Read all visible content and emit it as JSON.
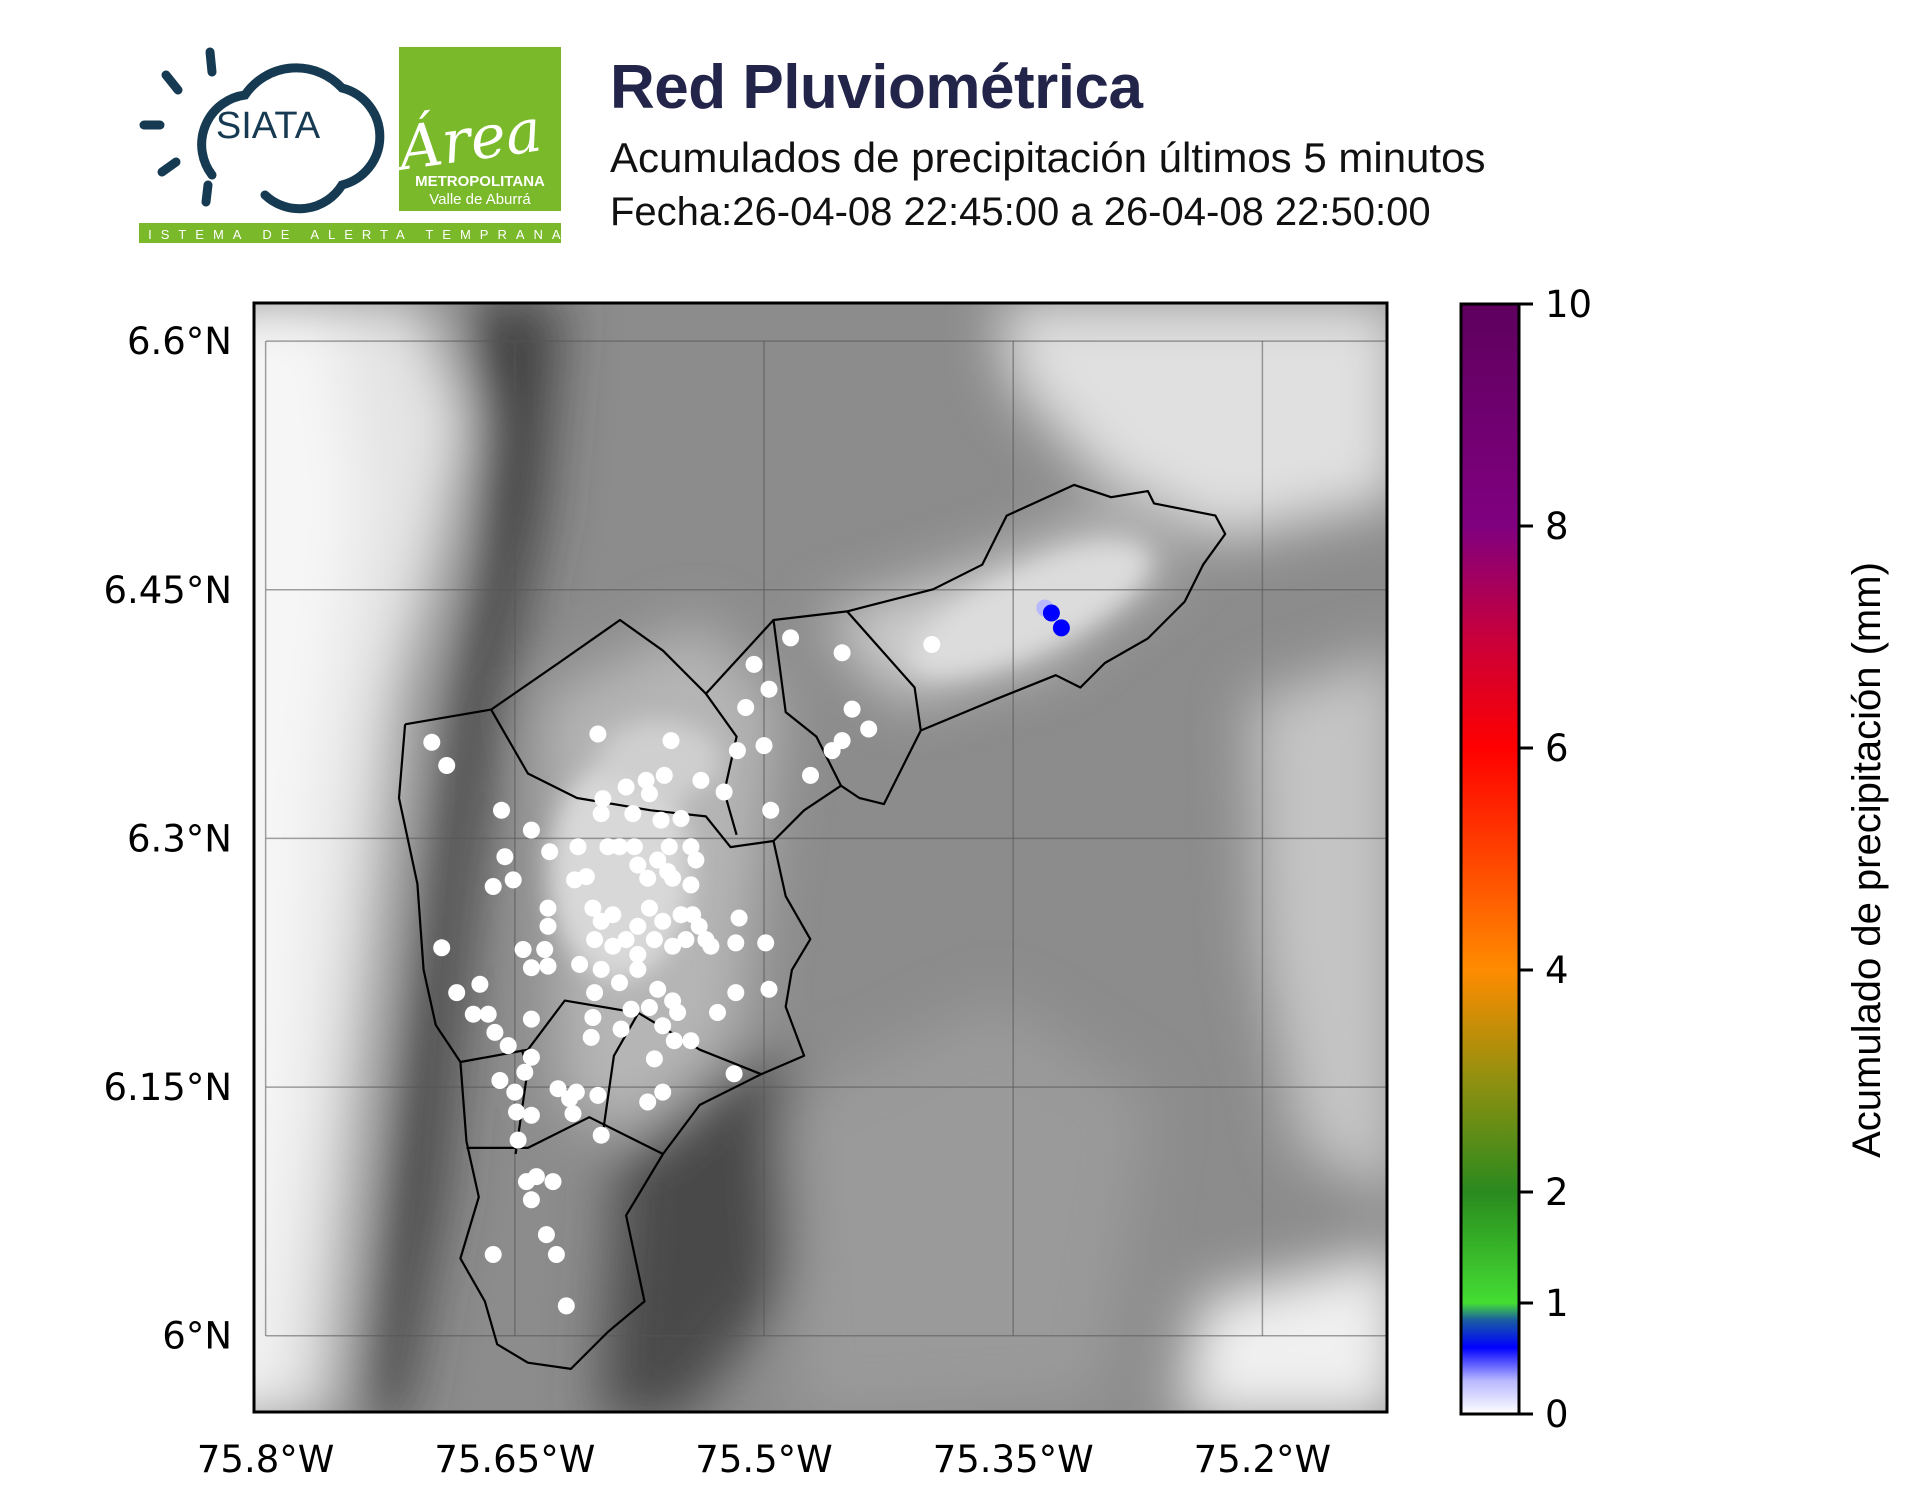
{
  "header": {
    "title": "Red Pluviométrica",
    "subtitle": "Acumulados de precipitación últimos 5 minutos",
    "date_range": "Fecha:26-04-08 22:45:00 a 26-04-08 22:50:00"
  },
  "logos": {
    "siata": "SIATA",
    "siata_tagline": "SISTEMA DE ALERTA TEMPRANA",
    "area_script": "Área",
    "area_line1": "METROPOLITANA",
    "area_line2": "Valle de Aburrá",
    "area_color": "#7ab929",
    "siata_color": "#163a52"
  },
  "chart_data": {
    "type": "scatter",
    "map_type": "station map over grayscale elevation relief",
    "lon_ticks": [
      {
        "value": -75.8,
        "label": "75.8°W"
      },
      {
        "value": -75.65,
        "label": "75.65°W"
      },
      {
        "value": -75.5,
        "label": "75.5°W"
      },
      {
        "value": -75.35,
        "label": "75.35°W"
      },
      {
        "value": -75.2,
        "label": "75.2°W"
      }
    ],
    "lat_ticks": [
      {
        "value": 6.6,
        "label": "6.6°N"
      },
      {
        "value": 6.45,
        "label": "6.45°N"
      },
      {
        "value": 6.3,
        "label": "6.3°N"
      },
      {
        "value": 6.15,
        "label": "6.15°N"
      },
      {
        "value": 6.0,
        "label": "6°N"
      }
    ],
    "lon_range": [
      -75.807,
      -75.125
    ],
    "lat_range": [
      5.954,
      6.623
    ],
    "grid": true,
    "colorbar": {
      "label": "Acumulado de precipitación (mm)",
      "range": [
        0,
        10
      ],
      "ticks": [
        {
          "value": 0,
          "label": "0"
        },
        {
          "value": 1,
          "label": "1"
        },
        {
          "value": 2,
          "label": "2"
        },
        {
          "value": 4,
          "label": "4"
        },
        {
          "value": 6,
          "label": "6"
        },
        {
          "value": 8,
          "label": "8"
        },
        {
          "value": 10,
          "label": "10"
        }
      ],
      "stops": [
        [
          0,
          "#ffffff"
        ],
        [
          0.3,
          "#b8b8ff"
        ],
        [
          0.6,
          "#0000ff"
        ],
        [
          0.85,
          "#1a5fa0"
        ],
        [
          1,
          "#44dd33"
        ],
        [
          2,
          "#2a8a1e"
        ],
        [
          3,
          "#909010"
        ],
        [
          4,
          "#ff8c00"
        ],
        [
          5,
          "#ff4500"
        ],
        [
          6,
          "#ff0000"
        ],
        [
          7,
          "#c8003c"
        ],
        [
          8,
          "#800080"
        ],
        [
          10,
          "#5e005e"
        ]
      ]
    },
    "stations": [
      [
        -75.7,
        6.358,
        0
      ],
      [
        -75.691,
        6.344,
        0
      ],
      [
        -75.6,
        6.363,
        0
      ],
      [
        -75.556,
        6.359,
        0
      ],
      [
        -75.658,
        6.317,
        0
      ],
      [
        -75.64,
        6.305,
        0
      ],
      [
        -75.656,
        6.289,
        0
      ],
      [
        -75.663,
        6.271,
        0
      ],
      [
        -75.651,
        6.275,
        0
      ],
      [
        -75.629,
        6.292,
        0
      ],
      [
        -75.612,
        6.295,
        0
      ],
      [
        -75.694,
        6.234,
        0
      ],
      [
        -75.685,
        6.207,
        0
      ],
      [
        -75.671,
        6.212,
        0
      ],
      [
        -75.675,
        6.194,
        0
      ],
      [
        -75.666,
        6.194,
        0
      ],
      [
        -75.662,
        6.183,
        0
      ],
      [
        -75.654,
        6.175,
        0
      ],
      [
        -75.64,
        6.191,
        0
      ],
      [
        -75.645,
        6.233,
        0
      ],
      [
        -75.632,
        6.233,
        0
      ],
      [
        -75.64,
        6.222,
        0
      ],
      [
        -75.63,
        6.223,
        0
      ],
      [
        -75.63,
        6.258,
        0
      ],
      [
        -75.63,
        6.247,
        0
      ],
      [
        -75.614,
        6.275,
        0
      ],
      [
        -75.607,
        6.277,
        0
      ],
      [
        -75.603,
        6.258,
        0
      ],
      [
        -75.594,
        6.295,
        0
      ],
      [
        -75.587,
        6.295,
        0
      ],
      [
        -75.578,
        6.295,
        0
      ],
      [
        -75.597,
        6.324,
        0
      ],
      [
        -75.598,
        6.315,
        0
      ],
      [
        -75.583,
        6.331,
        0
      ],
      [
        -75.571,
        6.335,
        0
      ],
      [
        -75.56,
        6.338,
        0
      ],
      [
        -75.569,
        6.327,
        0
      ],
      [
        -75.579,
        6.315,
        0
      ],
      [
        -75.562,
        6.311,
        0
      ],
      [
        -75.55,
        6.312,
        0
      ],
      [
        -75.557,
        6.295,
        0
      ],
      [
        -75.558,
        6.28,
        0
      ],
      [
        -75.544,
        6.295,
        0
      ],
      [
        -75.541,
        6.287,
        0
      ],
      [
        -75.538,
        6.335,
        0
      ],
      [
        -75.524,
        6.328,
        0
      ],
      [
        -75.516,
        6.353,
        0
      ],
      [
        -75.5,
        6.356,
        0
      ],
      [
        -75.506,
        6.405,
        0
      ],
      [
        -75.497,
        6.39,
        0
      ],
      [
        -75.511,
        6.379,
        0
      ],
      [
        -75.484,
        6.421,
        0
      ],
      [
        -75.472,
        6.338,
        0
      ],
      [
        -75.496,
        6.317,
        0
      ],
      [
        -75.453,
        6.412,
        0
      ],
      [
        -75.447,
        6.378,
        0
      ],
      [
        -75.437,
        6.366,
        0
      ],
      [
        -75.453,
        6.359,
        0
      ],
      [
        -75.459,
        6.353,
        0
      ],
      [
        -75.399,
        6.417,
        0
      ],
      [
        -75.576,
        6.284,
        0
      ],
      [
        -75.57,
        6.276,
        0
      ],
      [
        -75.564,
        6.287,
        0
      ],
      [
        -75.555,
        6.276,
        0
      ],
      [
        -75.544,
        6.272,
        0
      ],
      [
        -75.598,
        6.25,
        0
      ],
      [
        -75.591,
        6.254,
        0
      ],
      [
        -75.583,
        6.239,
        0
      ],
      [
        -75.576,
        6.247,
        0
      ],
      [
        -75.569,
        6.258,
        0
      ],
      [
        -75.561,
        6.25,
        0
      ],
      [
        -75.55,
        6.254,
        0
      ],
      [
        -75.543,
        6.254,
        0
      ],
      [
        -75.539,
        6.247,
        0
      ],
      [
        -75.535,
        6.239,
        0
      ],
      [
        -75.532,
        6.235,
        0
      ],
      [
        -75.547,
        6.239,
        0
      ],
      [
        -75.555,
        6.235,
        0
      ],
      [
        -75.566,
        6.239,
        0
      ],
      [
        -75.576,
        6.23,
        0
      ],
      [
        -75.591,
        6.235,
        0
      ],
      [
        -75.602,
        6.239,
        0
      ],
      [
        -75.611,
        6.224,
        0
      ],
      [
        -75.598,
        6.221,
        0
      ],
      [
        -75.587,
        6.213,
        0
      ],
      [
        -75.576,
        6.221,
        0
      ],
      [
        -75.564,
        6.209,
        0
      ],
      [
        -75.555,
        6.202,
        0
      ],
      [
        -75.569,
        6.198,
        0
      ],
      [
        -75.58,
        6.197,
        0
      ],
      [
        -75.602,
        6.207,
        0
      ],
      [
        -75.517,
        6.237,
        0
      ],
      [
        -75.515,
        6.252,
        0
      ],
      [
        -75.499,
        6.237,
        0
      ],
      [
        -75.517,
        6.207,
        0
      ],
      [
        -75.497,
        6.209,
        0
      ],
      [
        -75.528,
        6.195,
        0
      ],
      [
        -75.552,
        6.195,
        0
      ],
      [
        -75.561,
        6.187,
        0
      ],
      [
        -75.554,
        6.178,
        0
      ],
      [
        -75.544,
        6.178,
        0
      ],
      [
        -75.603,
        6.192,
        0
      ],
      [
        -75.604,
        6.18,
        0
      ],
      [
        -75.586,
        6.185,
        0
      ],
      [
        -75.566,
        6.167,
        0
      ],
      [
        -75.561,
        6.147,
        0
      ],
      [
        -75.57,
        6.141,
        0
      ],
      [
        -75.518,
        6.158,
        0
      ],
      [
        -75.64,
        6.168,
        0
      ],
      [
        -75.644,
        6.159,
        0
      ],
      [
        -75.659,
        6.154,
        0
      ],
      [
        -75.65,
        6.147,
        0
      ],
      [
        -75.649,
        6.135,
        0
      ],
      [
        -75.64,
        6.133,
        0
      ],
      [
        -75.624,
        6.149,
        0
      ],
      [
        -75.617,
        6.143,
        0
      ],
      [
        -75.615,
        6.134,
        0
      ],
      [
        -75.6,
        6.145,
        0
      ],
      [
        -75.598,
        6.121,
        0
      ],
      [
        -75.613,
        6.147,
        0
      ],
      [
        -75.648,
        6.118,
        0
      ],
      [
        -75.643,
        6.093,
        0
      ],
      [
        -75.637,
        6.096,
        0
      ],
      [
        -75.627,
        6.093,
        0
      ],
      [
        -75.64,
        6.082,
        0
      ],
      [
        -75.631,
        6.061,
        0
      ],
      [
        -75.625,
        6.049,
        0
      ],
      [
        -75.663,
        6.049,
        0
      ],
      [
        -75.619,
        6.018,
        0
      ],
      [
        -75.331,
        6.439,
        0.3
      ],
      [
        -75.327,
        6.436,
        0.6
      ],
      [
        -75.321,
        6.427,
        0.6
      ]
    ]
  }
}
